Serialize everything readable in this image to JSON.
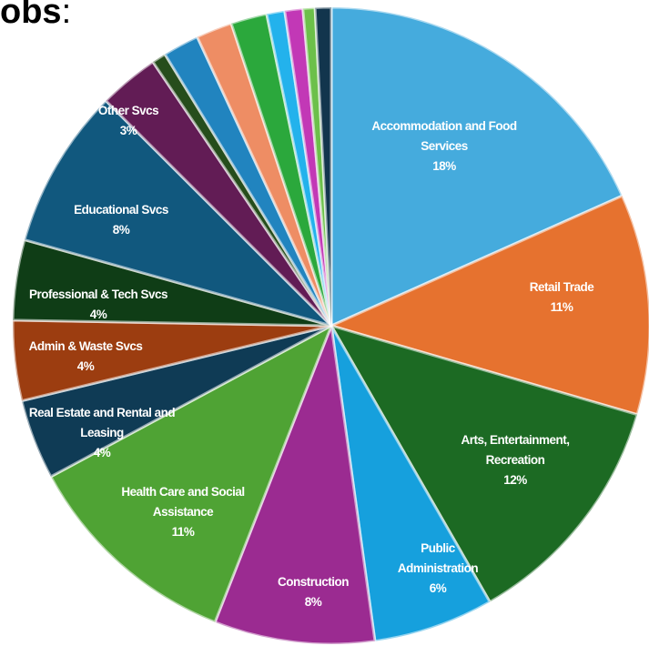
{
  "title_fragment": {
    "bold": "obs",
    "rest": ":"
  },
  "chart_data": {
    "type": "pie",
    "start_angle_deg": 0,
    "direction": "clockwise",
    "slices": [
      {
        "label": [
          "Accommodation and Food",
          "Services"
        ],
        "value": 18,
        "pct_text": "18%",
        "color": "#45abdd"
      },
      {
        "label": [
          "Retail Trade"
        ],
        "value": 11,
        "pct_text": "11%",
        "color": "#e6722f"
      },
      {
        "label": [
          "Arts, Entertainment,",
          "Recreation"
        ],
        "value": 12,
        "pct_text": "12%",
        "color": "#1c6a23"
      },
      {
        "label": [
          "Public",
          "Administration"
        ],
        "value": 6,
        "pct_text": "6%",
        "color": "#16a0dd"
      },
      {
        "label": [
          "Construction"
        ],
        "value": 8,
        "pct_text": "8%",
        "color": "#9b2b91"
      },
      {
        "label": [
          "Health Care and Social",
          "Assistance"
        ],
        "value": 11,
        "pct_text": "11%",
        "color": "#4fa334"
      },
      {
        "label": [
          "Real Estate and Rental and",
          "Leasing"
        ],
        "value": 4,
        "pct_text": "4%",
        "color": "#0f3b55"
      },
      {
        "label": [
          "Admin & Waste Svcs"
        ],
        "value": 4,
        "pct_text": "4%",
        "color": "#9c3d10"
      },
      {
        "label": [
          "Professional & Tech Svcs"
        ],
        "value": 4,
        "pct_text": "4%",
        "color": "#0f3d16"
      },
      {
        "label": [
          "Educational Svcs"
        ],
        "value": 8,
        "pct_text": "8%",
        "color": "#11587e"
      },
      {
        "label": [
          "Other Svcs"
        ],
        "value": 3,
        "pct_text": "3%",
        "color": "#621c55"
      },
      {
        "label": [],
        "value": 0.7,
        "pct_text": "",
        "color": "#264d1c"
      },
      {
        "label": [],
        "value": 1.8,
        "pct_text": "",
        "color": "#2184bf"
      },
      {
        "label": [],
        "value": 1.8,
        "pct_text": "",
        "color": "#ee8d64"
      },
      {
        "label": [],
        "value": 1.8,
        "pct_text": "",
        "color": "#2ba83c"
      },
      {
        "label": [],
        "value": 0.9,
        "pct_text": "",
        "color": "#23b2ec"
      },
      {
        "label": [],
        "value": 0.9,
        "pct_text": "",
        "color": "#c238b6"
      },
      {
        "label": [],
        "value": 0.6,
        "pct_text": "",
        "color": "#6cc04a"
      },
      {
        "label": [],
        "value": 0.8,
        "pct_text": "",
        "color": "#12354d"
      }
    ]
  }
}
